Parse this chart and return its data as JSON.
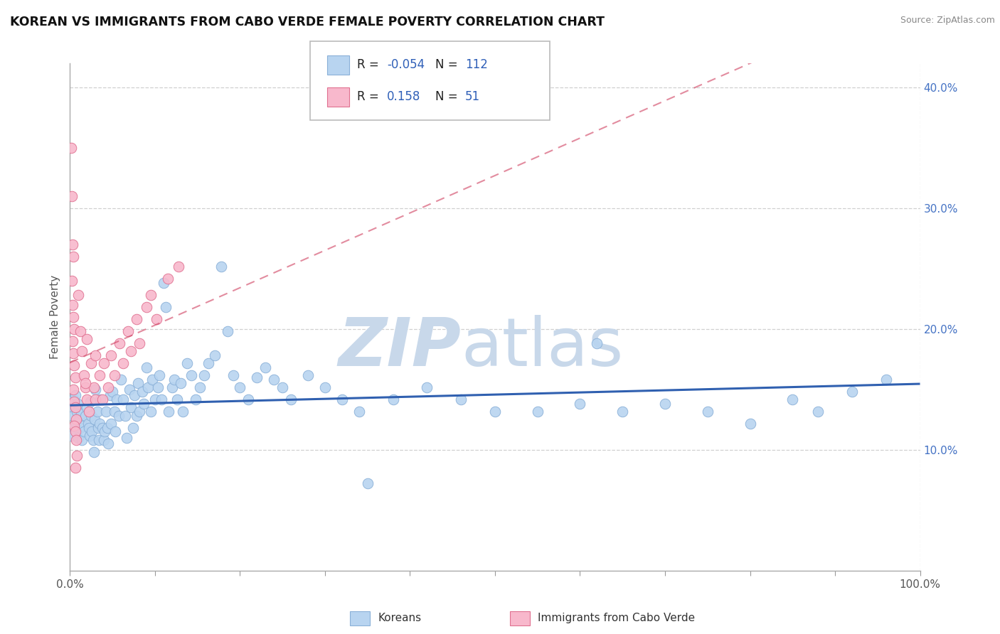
{
  "title": "KOREAN VS IMMIGRANTS FROM CABO VERDE FEMALE POVERTY CORRELATION CHART",
  "source": "Source: ZipAtlas.com",
  "ylabel": "Female Poverty",
  "xlim": [
    0,
    1
  ],
  "ylim": [
    0,
    0.42
  ],
  "yticks": [
    0.1,
    0.2,
    0.3,
    0.4
  ],
  "ytick_labels": [
    "10.0%",
    "20.0%",
    "30.0%",
    "40.0%"
  ],
  "xticks": [
    0.0,
    0.1,
    0.2,
    0.3,
    0.4,
    0.5,
    0.6,
    0.7,
    0.8,
    0.9,
    1.0
  ],
  "xtick_labels": [
    "0.0%",
    "",
    "",
    "",
    "",
    "",
    "",
    "",
    "",
    "",
    "100.0%"
  ],
  "watermark_zip": "ZIP",
  "watermark_atlas": "atlas",
  "watermark_color": "#c8d8ea",
  "background_color": "#ffffff",
  "grid_color": "#d0d0d0",
  "series": [
    {
      "name": "Koreans",
      "color": "#b8d4f0",
      "edge_color": "#8ab0d8",
      "trend_color": "#3060b0",
      "trend_dash": "solid",
      "R": -0.054,
      "N": 112,
      "x": [
        0.002,
        0.003,
        0.004,
        0.005,
        0.001,
        0.006,
        0.008,
        0.007,
        0.009,
        0.01,
        0.011,
        0.012,
        0.013,
        0.014,
        0.015,
        0.016,
        0.018,
        0.02,
        0.021,
        0.022,
        0.023,
        0.024,
        0.025,
        0.026,
        0.027,
        0.028,
        0.029,
        0.03,
        0.032,
        0.033,
        0.034,
        0.035,
        0.036,
        0.038,
        0.04,
        0.041,
        0.042,
        0.044,
        0.045,
        0.047,
        0.048,
        0.05,
        0.052,
        0.053,
        0.055,
        0.057,
        0.06,
        0.062,
        0.065,
        0.067,
        0.07,
        0.072,
        0.074,
        0.076,
        0.078,
        0.08,
        0.082,
        0.085,
        0.087,
        0.09,
        0.092,
        0.095,
        0.097,
        0.1,
        0.103,
        0.105,
        0.108,
        0.11,
        0.113,
        0.116,
        0.12,
        0.123,
        0.126,
        0.13,
        0.133,
        0.138,
        0.143,
        0.148,
        0.153,
        0.158,
        0.163,
        0.17,
        0.178,
        0.185,
        0.192,
        0.2,
        0.21,
        0.22,
        0.23,
        0.24,
        0.25,
        0.26,
        0.28,
        0.3,
        0.32,
        0.34,
        0.38,
        0.42,
        0.46,
        0.5,
        0.55,
        0.6,
        0.65,
        0.7,
        0.75,
        0.8,
        0.85,
        0.88,
        0.92,
        0.96,
        0.35,
        0.62
      ],
      "y": [
        0.135,
        0.128,
        0.142,
        0.118,
        0.112,
        0.145,
        0.132,
        0.122,
        0.138,
        0.11,
        0.125,
        0.118,
        0.13,
        0.108,
        0.12,
        0.115,
        0.128,
        0.135,
        0.122,
        0.118,
        0.112,
        0.14,
        0.128,
        0.115,
        0.108,
        0.098,
        0.125,
        0.15,
        0.132,
        0.118,
        0.108,
        0.122,
        0.142,
        0.118,
        0.108,
        0.115,
        0.132,
        0.118,
        0.105,
        0.145,
        0.122,
        0.148,
        0.132,
        0.115,
        0.142,
        0.128,
        0.158,
        0.142,
        0.128,
        0.11,
        0.15,
        0.135,
        0.118,
        0.145,
        0.128,
        0.155,
        0.132,
        0.148,
        0.138,
        0.168,
        0.152,
        0.132,
        0.158,
        0.142,
        0.152,
        0.162,
        0.142,
        0.238,
        0.218,
        0.132,
        0.152,
        0.158,
        0.142,
        0.155,
        0.132,
        0.172,
        0.162,
        0.142,
        0.152,
        0.162,
        0.172,
        0.178,
        0.252,
        0.198,
        0.162,
        0.152,
        0.142,
        0.16,
        0.168,
        0.158,
        0.152,
        0.142,
        0.162,
        0.152,
        0.142,
        0.132,
        0.142,
        0.152,
        0.142,
        0.132,
        0.132,
        0.138,
        0.132,
        0.138,
        0.132,
        0.122,
        0.142,
        0.132,
        0.148,
        0.158,
        0.072,
        0.188
      ]
    },
    {
      "name": "Immigrants from Cabo Verde",
      "color": "#f8b8cc",
      "edge_color": "#e07090",
      "trend_color": "#d04060",
      "trend_dash": "dashed",
      "R": 0.158,
      "N": 51,
      "x": [
        0.001,
        0.002,
        0.003,
        0.004,
        0.002,
        0.003,
        0.004,
        0.005,
        0.003,
        0.004,
        0.005,
        0.006,
        0.004,
        0.005,
        0.006,
        0.007,
        0.005,
        0.006,
        0.007,
        0.008,
        0.006,
        0.01,
        0.012,
        0.014,
        0.016,
        0.018,
        0.02,
        0.022,
        0.02,
        0.025,
        0.028,
        0.03,
        0.03,
        0.035,
        0.038,
        0.04,
        0.045,
        0.048,
        0.052,
        0.058,
        0.062,
        0.068,
        0.072,
        0.078,
        0.082,
        0.09,
        0.095,
        0.102,
        0.115,
        0.128,
        0.018
      ],
      "y": [
        0.35,
        0.31,
        0.27,
        0.26,
        0.24,
        0.22,
        0.21,
        0.2,
        0.19,
        0.18,
        0.17,
        0.16,
        0.15,
        0.14,
        0.135,
        0.125,
        0.12,
        0.115,
        0.108,
        0.095,
        0.085,
        0.228,
        0.198,
        0.182,
        0.162,
        0.152,
        0.142,
        0.132,
        0.192,
        0.172,
        0.152,
        0.142,
        0.178,
        0.162,
        0.142,
        0.172,
        0.152,
        0.178,
        0.162,
        0.188,
        0.172,
        0.198,
        0.182,
        0.208,
        0.188,
        0.218,
        0.228,
        0.208,
        0.242,
        0.252,
        0.155
      ]
    }
  ]
}
